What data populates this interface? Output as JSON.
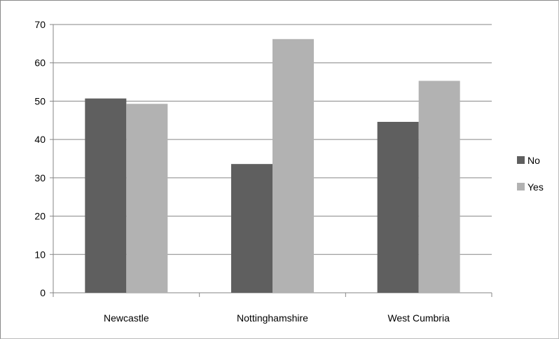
{
  "chart_data": {
    "type": "bar",
    "title": "",
    "xlabel": "",
    "ylabel": "",
    "categories": [
      "Newcastle",
      "Nottinghamshire",
      "West Cumbria"
    ],
    "series": [
      {
        "name": "No",
        "values": [
          50.7,
          33.6,
          44.6
        ],
        "color": "#5f5f5f"
      },
      {
        "name": "Yes",
        "values": [
          49.3,
          66.2,
          55.3
        ],
        "color": "#b2b2b2"
      }
    ],
    "ylim": [
      0,
      70
    ],
    "yticks": [
      "0",
      "10",
      "20",
      "30",
      "40",
      "50",
      "60",
      "70"
    ],
    "grid": true,
    "legend_position": "right"
  }
}
